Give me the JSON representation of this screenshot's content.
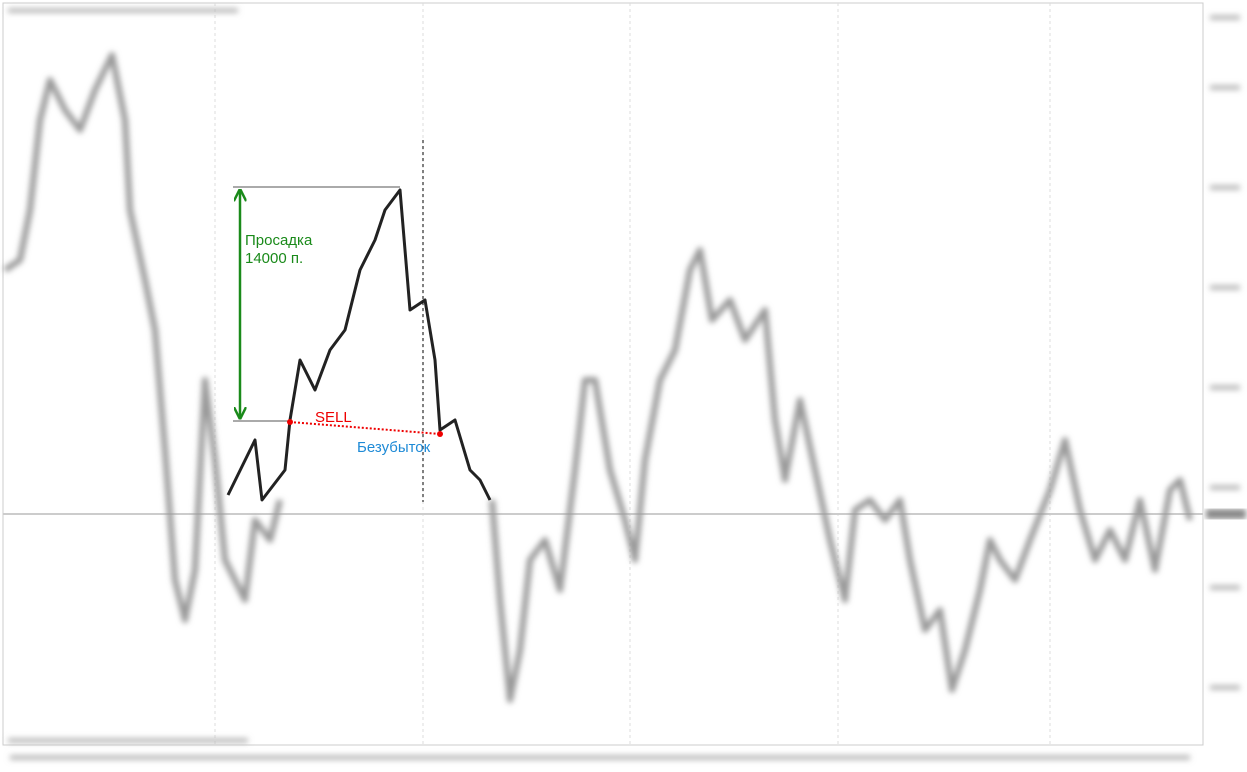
{
  "annotations": {
    "drawdown_label": "Просадка",
    "drawdown_points": "14000 п.",
    "sell_label": "SELL",
    "breakeven_label": "Безубыток"
  }
}
